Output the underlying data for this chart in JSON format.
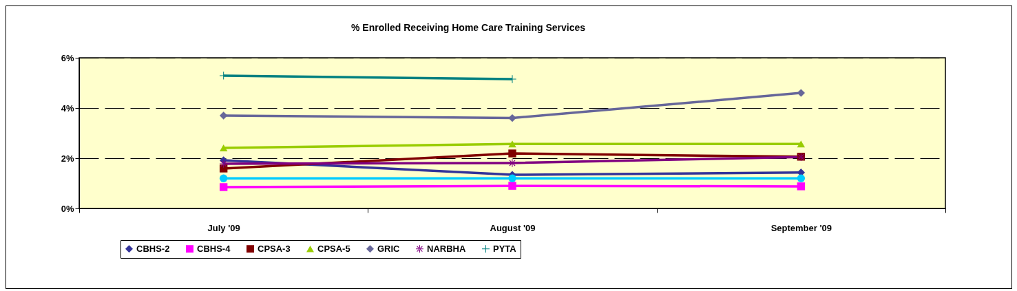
{
  "chart_data": {
    "type": "line",
    "title": "% Enrolled Receiving Home Care Training Services",
    "categories": [
      "July '09",
      "August '09",
      "September '09"
    ],
    "series": [
      {
        "name": "CBHS-2",
        "color": "#333399",
        "marker": "diamond",
        "values": [
          1.92,
          1.34,
          1.43
        ]
      },
      {
        "name": "CBHS-4",
        "color": "#ff00ff",
        "marker": "square",
        "values": [
          0.85,
          0.9,
          0.88
        ]
      },
      {
        "name": "CPSA-3",
        "color": "#800000",
        "marker": "square",
        "values": [
          1.59,
          2.19,
          2.06
        ]
      },
      {
        "name": "CPSA-5",
        "color": "#99cc00",
        "marker": "triangle",
        "values": [
          2.41,
          2.57,
          2.57
        ]
      },
      {
        "name": "GRIC",
        "color": "#666699",
        "marker": "diamond",
        "values": [
          3.7,
          3.6,
          4.6
        ]
      },
      {
        "color": "#00ccff",
        "marker": "circle",
        "values": [
          1.2,
          1.2,
          1.2
        ]
      },
      {
        "name": "NARBHA",
        "color": "#800080",
        "marker": "star",
        "values": [
          1.78,
          1.81,
          2.05
        ]
      },
      {
        "name": "PYTA",
        "color": "#008080",
        "marker": "cross",
        "values": [
          5.29,
          5.15,
          null
        ]
      }
    ],
    "ylim": [
      0,
      6
    ],
    "yticks": [
      {
        "value": 0,
        "label": "0%"
      },
      {
        "value": 2,
        "label": "2%"
      },
      {
        "value": 4,
        "label": "4%"
      },
      {
        "value": 6,
        "label": "6%"
      }
    ],
    "grid": "y",
    "legend": "bottom",
    "line_style": "solid"
  }
}
